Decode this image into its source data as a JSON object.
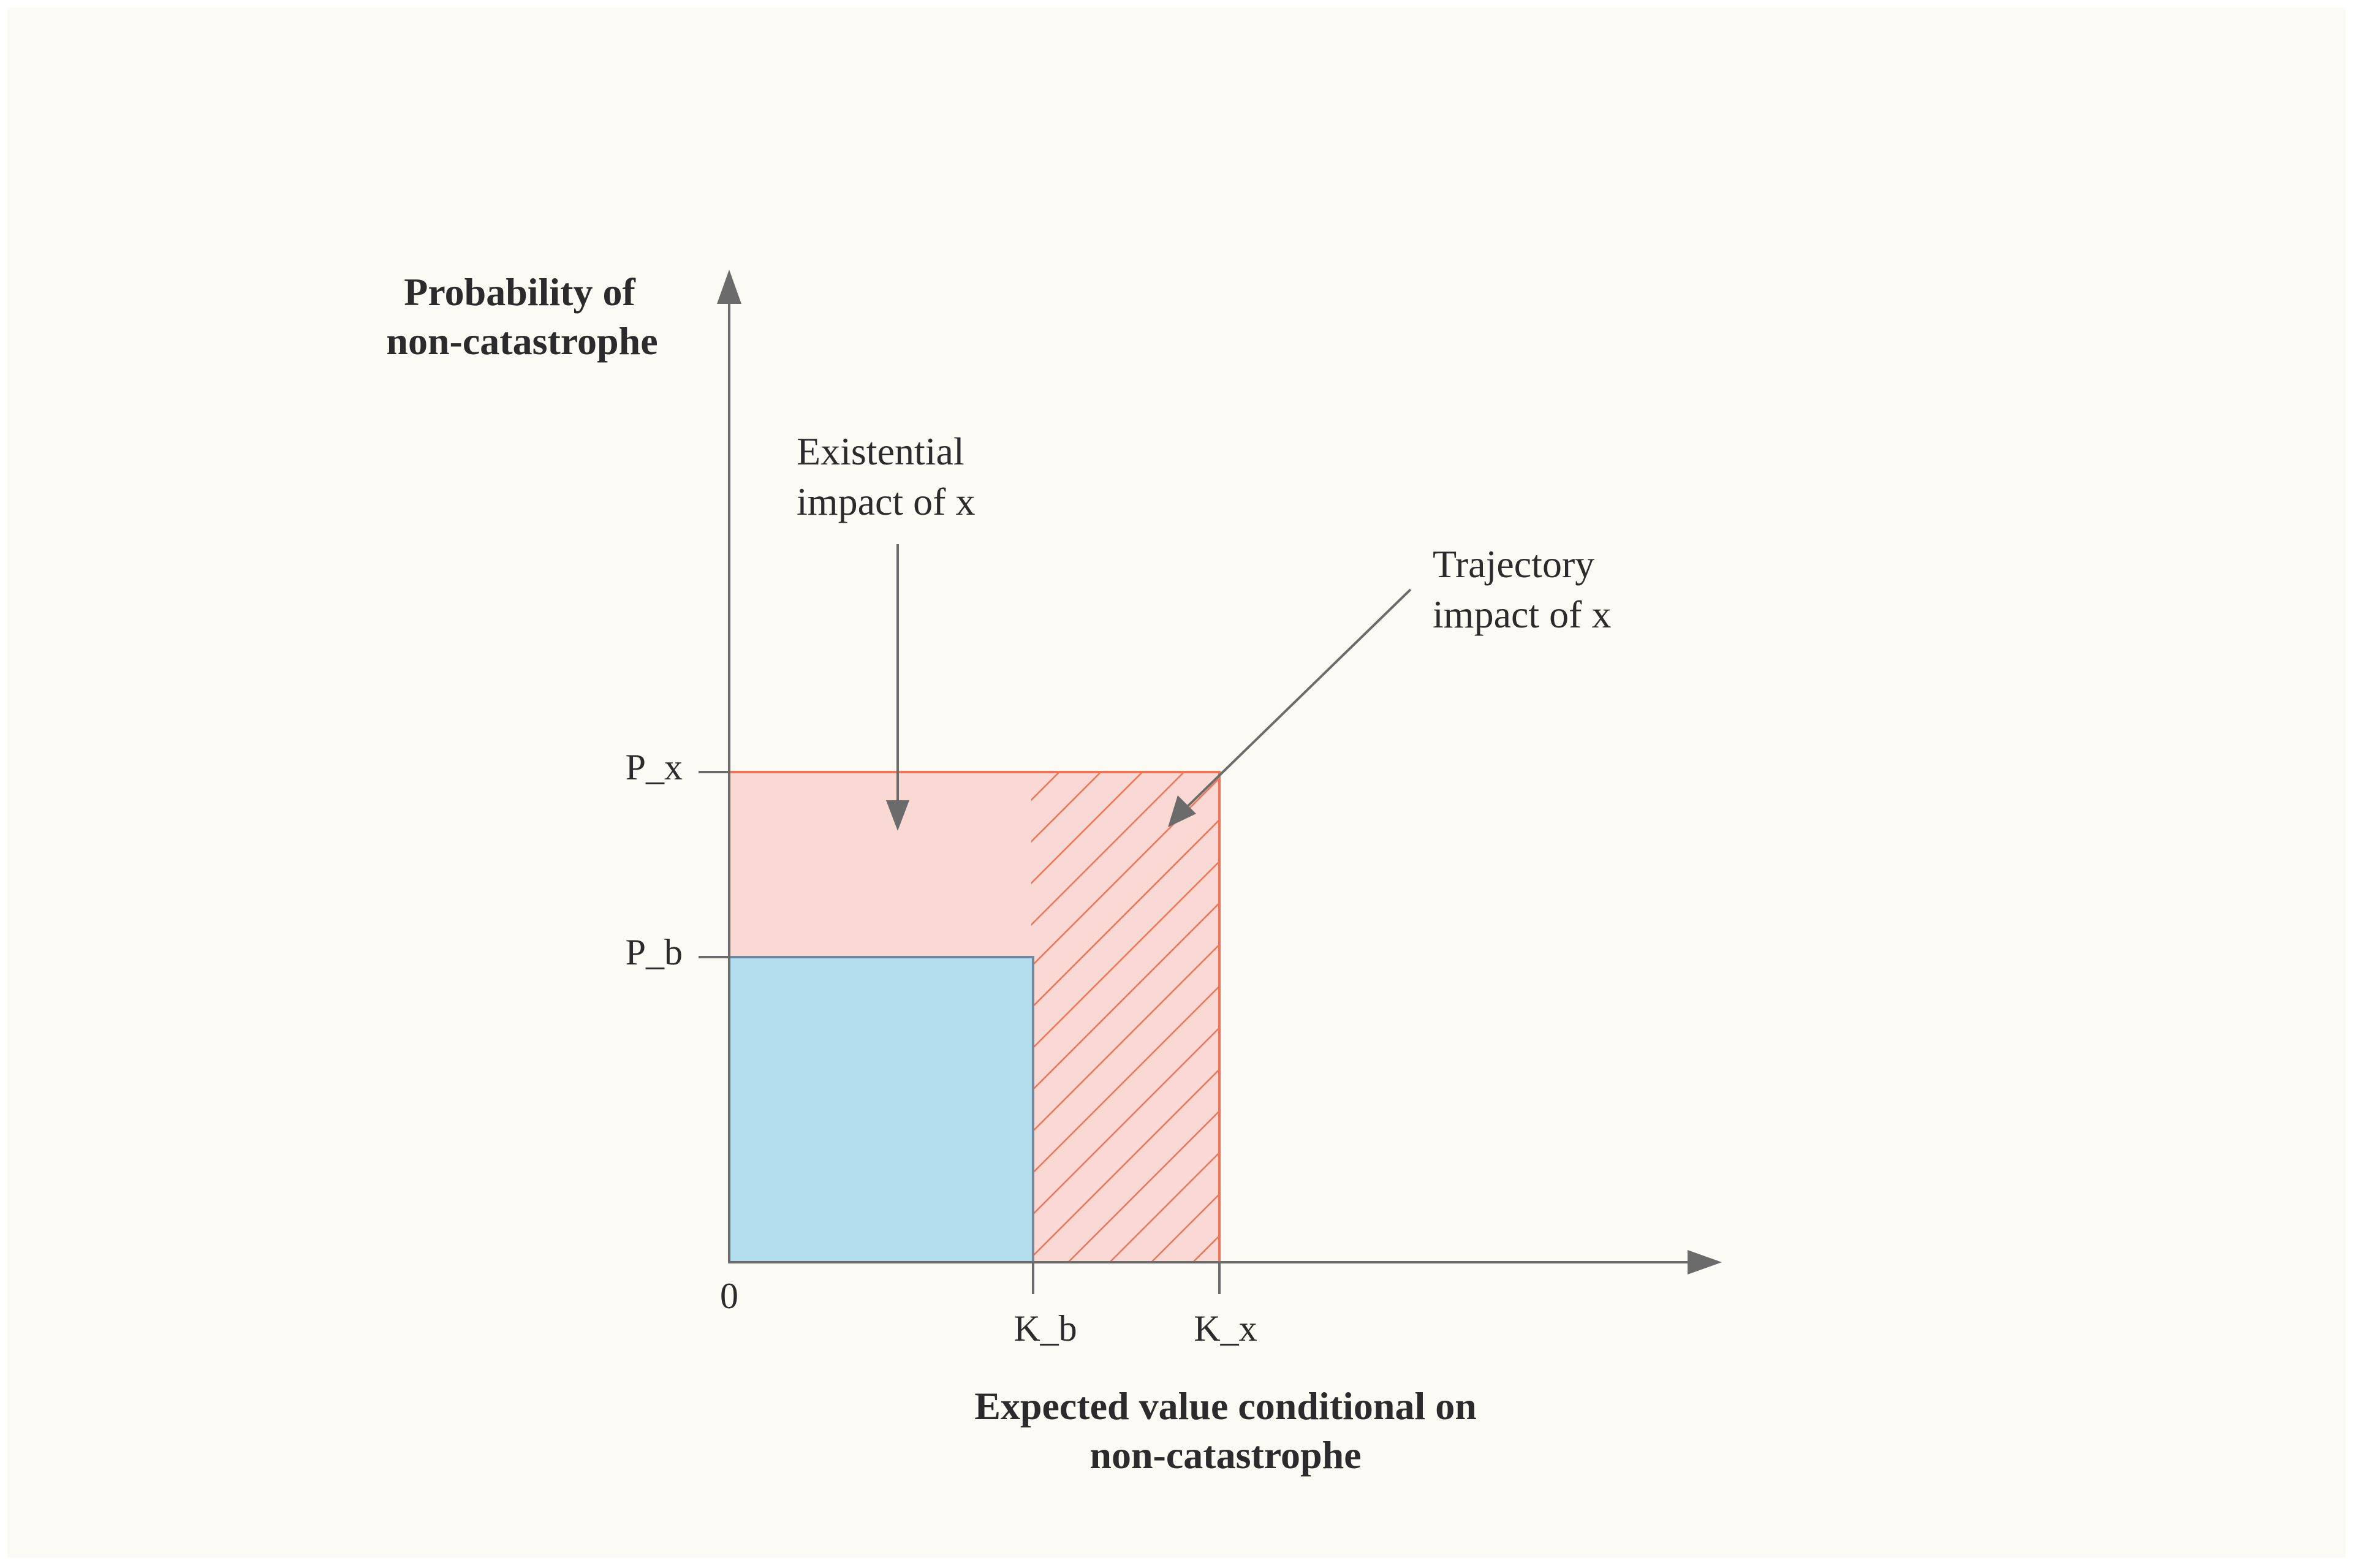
{
  "labels": {
    "y_axis_title_line1": "Probability of",
    "y_axis_title_line2": "non-catastrophe",
    "x_axis_title_line1": "Expected value conditional on",
    "x_axis_title_line2": "non-catastrophe",
    "origin": "0",
    "tick_p_x": "P_x",
    "tick_p_b": "P_b",
    "tick_k_b": "K_b",
    "tick_k_x": "K_x",
    "existential_line1": "Existential",
    "existential_line2": "impact of x",
    "trajectory_line1": "Trajectory",
    "trajectory_line2": "impact of x"
  },
  "colors": {
    "background": "#fbfaf4",
    "axis": "#6b6b6b",
    "baseline_fill": "#b2dded",
    "baseline_stroke": "#6f8aa0",
    "impact_fill": "#fad8d3",
    "impact_stroke": "#ef7357",
    "hatch": "#ef7357",
    "text": "#2b2b2b"
  }
}
